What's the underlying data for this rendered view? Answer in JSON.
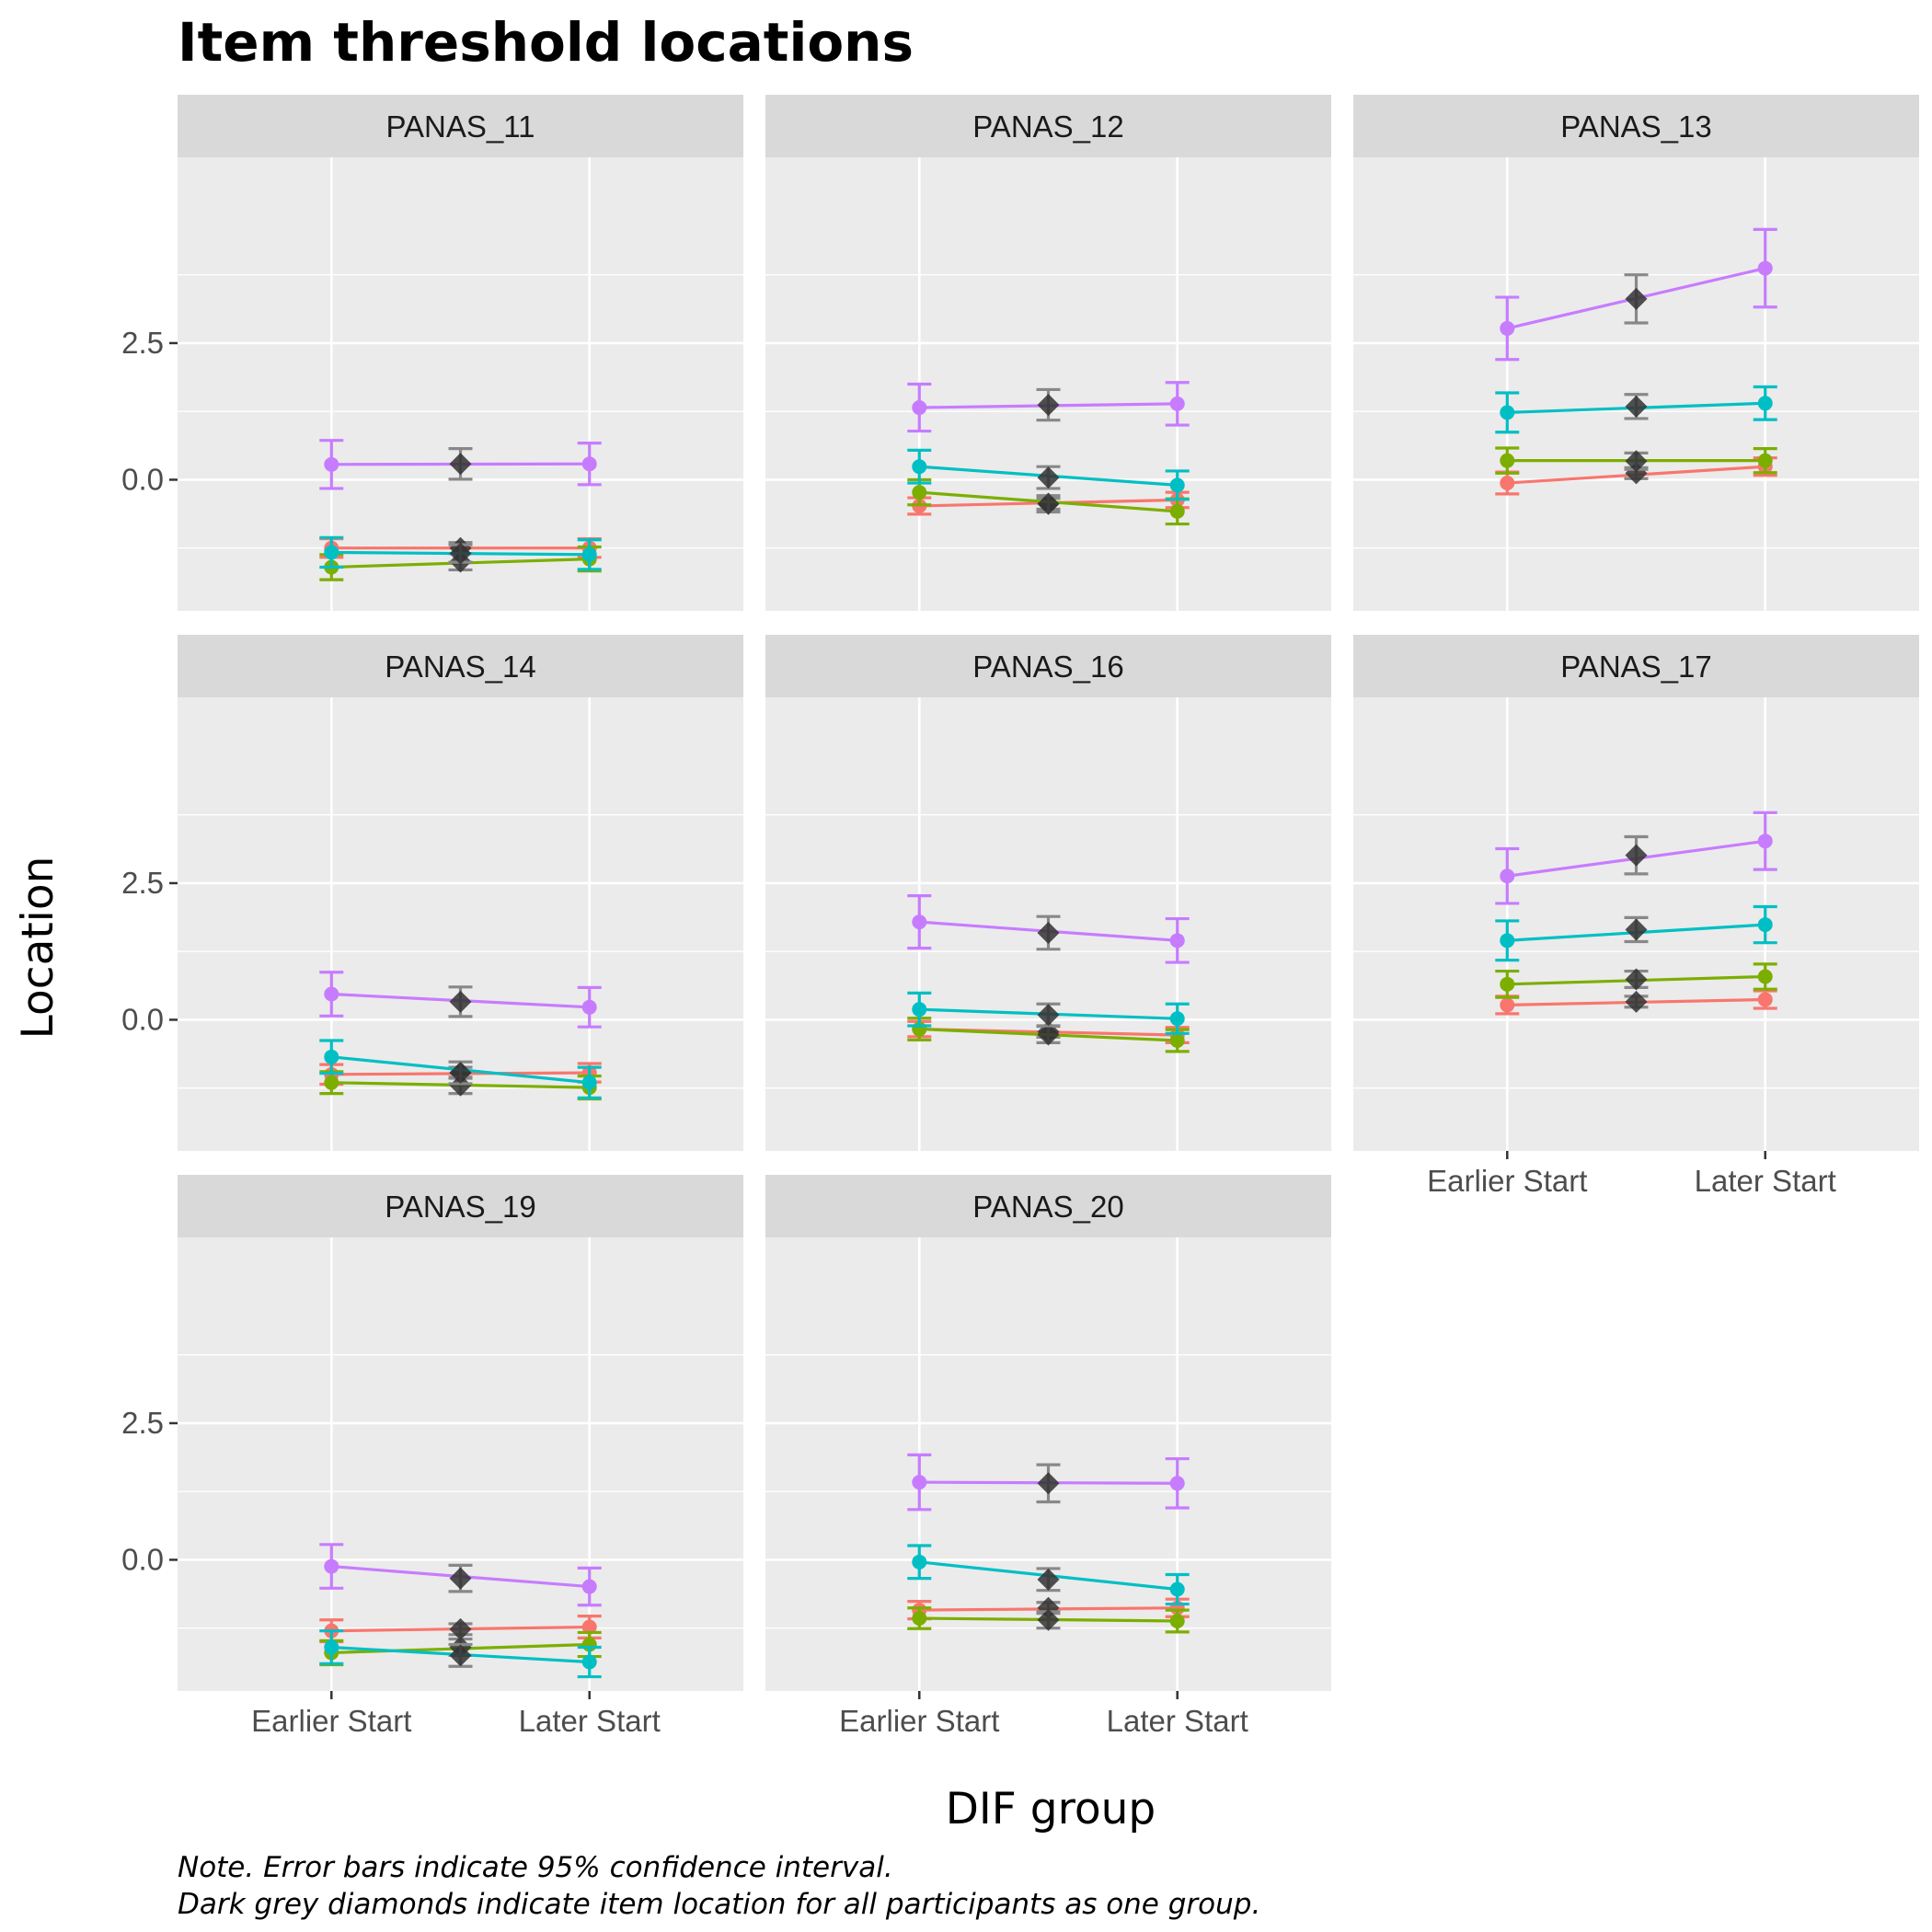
{
  "chart_data": {
    "type": "line",
    "title": "Item threshold locations",
    "xlabel": "DIF group",
    "ylabel": "Location",
    "caption": [
      "Note. Error bars indicate 95% confidence interval.",
      "Dark grey diamonds indicate item location for all participants as one group."
    ],
    "x_categories": [
      "Earlier Start",
      "Later Start"
    ],
    "y_ticks": [
      0,
      2.5
    ],
    "y_tick_labels": [
      "0.0",
      "2.5"
    ],
    "ylim": [
      -2.4,
      5.9
    ],
    "grid": true,
    "legend": "none",
    "series_colors": [
      "#F8766D",
      "#7CAE00",
      "#00BFC4",
      "#C77CFF"
    ],
    "overall_color": "#333333",
    "panels": [
      {
        "label": "PANAS_11",
        "thresholds": [
          {
            "early": -1.25,
            "late": -1.25,
            "early_ci": 0.17,
            "late_ci": 0.17,
            "overall": -1.25,
            "overall_ci": 0.1
          },
          {
            "early": -1.6,
            "late": -1.45,
            "early_ci": 0.23,
            "late_ci": 0.22,
            "overall": -1.5,
            "overall_ci": 0.15
          },
          {
            "early": -1.33,
            "late": -1.37,
            "early_ci": 0.27,
            "late_ci": 0.27,
            "overall": -1.35,
            "overall_ci": 0.16
          },
          {
            "early": 0.28,
            "late": 0.29,
            "early_ci": 0.44,
            "late_ci": 0.38,
            "overall": 0.29,
            "overall_ci": 0.28
          }
        ]
      },
      {
        "label": "PANAS_12",
        "thresholds": [
          {
            "early": -0.48,
            "late": -0.37,
            "early_ci": 0.15,
            "late_ci": 0.14,
            "overall": -0.44,
            "overall_ci": 0.1
          },
          {
            "early": -0.23,
            "late": -0.58,
            "early_ci": 0.23,
            "late_ci": 0.23,
            "overall": -0.44,
            "overall_ci": 0.15
          },
          {
            "early": 0.24,
            "late": -0.1,
            "early_ci": 0.3,
            "late_ci": 0.26,
            "overall": 0.04,
            "overall_ci": 0.2
          },
          {
            "early": 1.32,
            "late": 1.39,
            "early_ci": 0.43,
            "late_ci": 0.39,
            "overall": 1.37,
            "overall_ci": 0.28
          }
        ]
      },
      {
        "label": "PANAS_13",
        "thresholds": [
          {
            "early": -0.06,
            "late": 0.24,
            "early_ci": 0.2,
            "late_ci": 0.16,
            "overall": 0.12,
            "overall_ci": 0.1
          },
          {
            "early": 0.35,
            "late": 0.35,
            "early_ci": 0.23,
            "late_ci": 0.22,
            "overall": 0.34,
            "overall_ci": 0.15
          },
          {
            "early": 1.23,
            "late": 1.4,
            "early_ci": 0.36,
            "late_ci": 0.3,
            "overall": 1.34,
            "overall_ci": 0.22
          },
          {
            "early": 2.77,
            "late": 3.87,
            "early_ci": 0.57,
            "late_ci": 0.71,
            "overall": 3.31,
            "overall_ci": 0.44
          }
        ]
      },
      {
        "label": "PANAS_14",
        "thresholds": [
          {
            "early": -1.0,
            "late": -0.97,
            "early_ci": 0.18,
            "late_ci": 0.17,
            "overall": -0.97,
            "overall_ci": 0.1
          },
          {
            "early": -1.15,
            "late": -1.24,
            "early_ci": 0.2,
            "late_ci": 0.21,
            "overall": -1.2,
            "overall_ci": 0.15
          },
          {
            "early": -0.68,
            "late": -1.15,
            "early_ci": 0.3,
            "late_ci": 0.28,
            "overall": -0.97,
            "overall_ci": 0.2
          },
          {
            "early": 0.47,
            "late": 0.23,
            "early_ci": 0.4,
            "late_ci": 0.36,
            "overall": 0.33,
            "overall_ci": 0.27
          }
        ]
      },
      {
        "label": "PANAS_16",
        "thresholds": [
          {
            "early": -0.17,
            "late": -0.28,
            "early_ci": 0.14,
            "late_ci": 0.14,
            "overall": -0.22,
            "overall_ci": 0.1
          },
          {
            "early": -0.17,
            "late": -0.38,
            "early_ci": 0.2,
            "late_ci": 0.2,
            "overall": -0.27,
            "overall_ci": 0.15
          },
          {
            "early": 0.19,
            "late": 0.02,
            "early_ci": 0.3,
            "late_ci": 0.27,
            "overall": 0.09,
            "overall_ci": 0.2
          },
          {
            "early": 1.79,
            "late": 1.45,
            "early_ci": 0.48,
            "late_ci": 0.4,
            "overall": 1.59,
            "overall_ci": 0.3
          }
        ]
      },
      {
        "label": "PANAS_17",
        "thresholds": [
          {
            "early": 0.27,
            "late": 0.37,
            "early_ci": 0.16,
            "late_ci": 0.16,
            "overall": 0.33,
            "overall_ci": 0.1
          },
          {
            "early": 0.65,
            "late": 0.79,
            "early_ci": 0.24,
            "late_ci": 0.23,
            "overall": 0.74,
            "overall_ci": 0.15
          },
          {
            "early": 1.45,
            "late": 1.74,
            "early_ci": 0.36,
            "late_ci": 0.33,
            "overall": 1.65,
            "overall_ci": 0.22
          },
          {
            "early": 2.63,
            "late": 3.27,
            "early_ci": 0.5,
            "late_ci": 0.52,
            "overall": 3.01,
            "overall_ci": 0.34
          }
        ]
      },
      {
        "label": "PANAS_19",
        "thresholds": [
          {
            "early": -1.3,
            "late": -1.23,
            "early_ci": 0.2,
            "late_ci": 0.2,
            "overall": -1.27,
            "overall_ci": 0.1
          },
          {
            "early": -1.7,
            "late": -1.55,
            "early_ci": 0.22,
            "late_ci": 0.22,
            "overall": -1.6,
            "overall_ci": 0.15
          },
          {
            "early": -1.6,
            "late": -1.87,
            "early_ci": 0.3,
            "late_ci": 0.27,
            "overall": -1.75,
            "overall_ci": 0.2
          },
          {
            "early": -0.12,
            "late": -0.49,
            "early_ci": 0.4,
            "late_ci": 0.34,
            "overall": -0.34,
            "overall_ci": 0.24
          }
        ]
      },
      {
        "label": "PANAS_20",
        "thresholds": [
          {
            "early": -0.92,
            "late": -0.88,
            "early_ci": 0.16,
            "late_ci": 0.16,
            "overall": -0.88,
            "overall_ci": 0.1
          },
          {
            "early": -1.07,
            "late": -1.12,
            "early_ci": 0.19,
            "late_ci": 0.2,
            "overall": -1.1,
            "overall_ci": 0.15
          },
          {
            "early": -0.04,
            "late": -0.54,
            "early_ci": 0.3,
            "late_ci": 0.27,
            "overall": -0.36,
            "overall_ci": 0.2
          },
          {
            "early": 1.42,
            "late": 1.4,
            "early_ci": 0.5,
            "late_ci": 0.45,
            "overall": 1.4,
            "overall_ci": 0.34
          }
        ]
      }
    ]
  }
}
